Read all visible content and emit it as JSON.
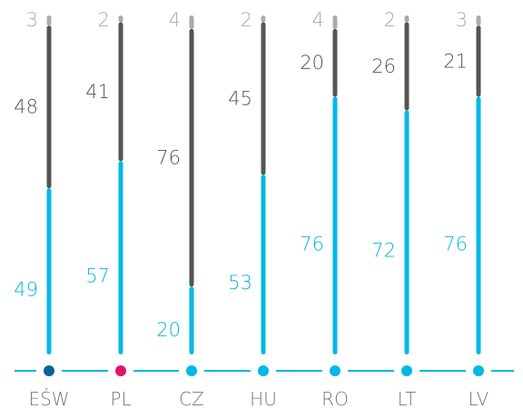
{
  "chart_data": {
    "type": "bar",
    "stacked": true,
    "orientation": "vertical",
    "categories": [
      "EŚW",
      "PL",
      "CZ",
      "HU",
      "RO",
      "LT",
      "LV"
    ],
    "series": [
      {
        "values": [
          49,
          57,
          20,
          53,
          76,
          72,
          76
        ],
        "color": "#00b8e6"
      },
      {
        "values": [
          48,
          41,
          76,
          45,
          20,
          26,
          21
        ],
        "color": "#555555"
      },
      {
        "values": [
          3,
          2,
          4,
          2,
          4,
          2,
          3
        ],
        "color": "#aaaaaa"
      }
    ],
    "marker_colors": [
      "#0a5f9e",
      "#e0136b",
      "#00b8e6",
      "#00b8e6",
      "#00b8e6",
      "#00b8e6",
      "#00b8e6"
    ],
    "ylim": [
      0,
      100
    ],
    "grid": false
  }
}
